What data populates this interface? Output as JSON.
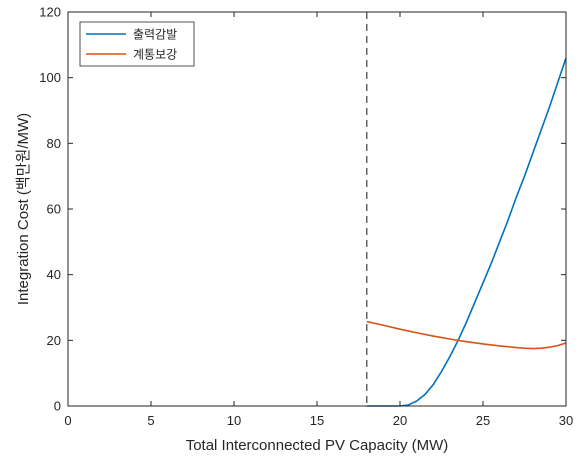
{
  "chart_data": {
    "type": "line",
    "title": "",
    "xlabel": "Total Interconnected PV Capacity (MW)",
    "ylabel": "Integration Cost (백만원/MW)",
    "xlim": [
      0,
      30
    ],
    "ylim": [
      0,
      120
    ],
    "xticks": [
      0,
      5,
      10,
      15,
      20,
      25,
      30
    ],
    "yticks": [
      0,
      20,
      40,
      60,
      80,
      100,
      120
    ],
    "grid": false,
    "legend_position": "top-left",
    "vline": {
      "x": 18,
      "style": "dashed",
      "color": "#404040"
    },
    "series": [
      {
        "name": "출력감발",
        "color": "#0072BD",
        "points": [
          [
            18,
            0
          ],
          [
            18.5,
            0
          ],
          [
            19,
            0
          ],
          [
            19.5,
            0
          ],
          [
            20,
            0
          ],
          [
            20.5,
            0.3
          ],
          [
            21,
            1.5
          ],
          [
            21.5,
            3.5
          ],
          [
            22,
            6.5
          ],
          [
            22.5,
            10.5
          ],
          [
            23,
            15
          ],
          [
            23.5,
            20
          ],
          [
            24,
            25.5
          ],
          [
            24.5,
            31.5
          ],
          [
            25,
            37.5
          ],
          [
            25.5,
            43.5
          ],
          [
            26,
            50
          ],
          [
            26.5,
            56.5
          ],
          [
            27,
            63.5
          ],
          [
            27.5,
            70
          ],
          [
            28,
            77
          ],
          [
            28.5,
            84
          ],
          [
            29,
            91
          ],
          [
            29.5,
            98.5
          ],
          [
            30,
            106
          ]
        ]
      },
      {
        "name": "계통보강",
        "color": "#D95319",
        "points": [
          [
            18,
            25.7
          ],
          [
            19,
            24.6
          ],
          [
            20,
            23.4
          ],
          [
            21,
            22.3
          ],
          [
            22,
            21.3
          ],
          [
            23,
            20.4
          ],
          [
            24,
            19.6
          ],
          [
            25,
            18.9
          ],
          [
            26,
            18.3
          ],
          [
            27,
            17.8
          ],
          [
            27.5,
            17.6
          ],
          [
            28,
            17.5
          ],
          [
            28.5,
            17.6
          ],
          [
            29,
            17.9
          ],
          [
            29.5,
            18.4
          ],
          [
            30,
            19.2
          ]
        ]
      }
    ]
  }
}
